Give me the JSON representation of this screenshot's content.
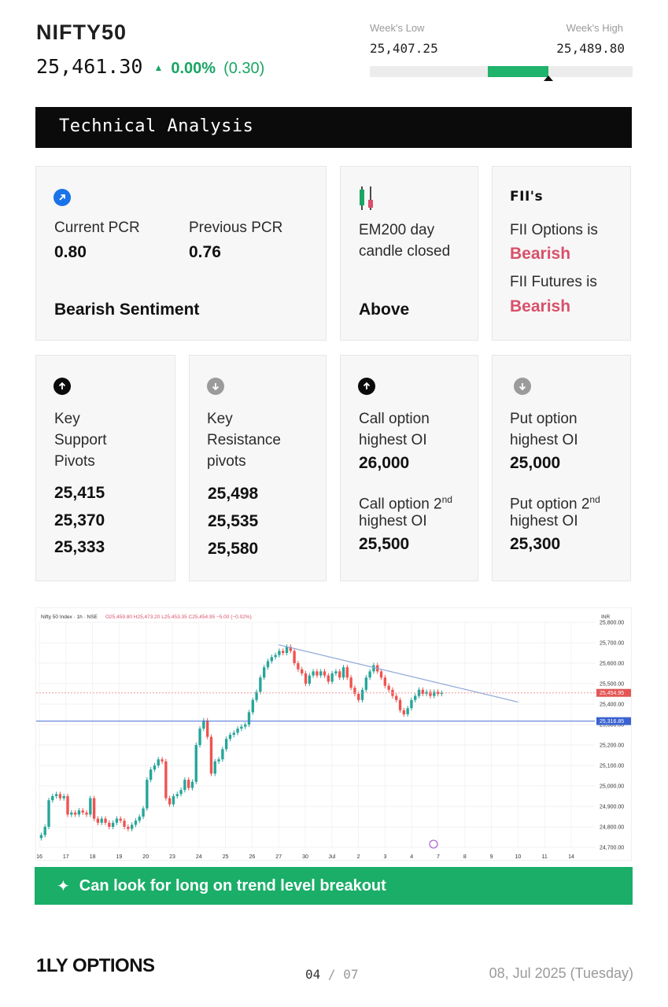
{
  "header": {
    "title": "NIFTY50",
    "price": "25,461.30",
    "change_pct": "0.00%",
    "change_abs": "(0.30)",
    "week_low_label": "Week's Low",
    "week_low": "25,407.25",
    "week_high_label": "Week's High",
    "week_high": "25,489.80",
    "range_fill_start": 0.45,
    "range_fill_end": 0.68,
    "range_marker": 0.68
  },
  "banner": {
    "title": "Technical Analysis"
  },
  "pcr": {
    "current_label": "Current PCR",
    "current_value": "0.80",
    "previous_label": "Previous PCR",
    "previous_value": "0.76",
    "sentiment": "Bearish Sentiment"
  },
  "ema": {
    "label_line1": "EM200 day",
    "label_line2": "candle closed",
    "value": "Above"
  },
  "fii": {
    "logo": "FII's",
    "options_label": "FII Options is",
    "options_value": "Bearish",
    "futures_label": "FII Futures is",
    "futures_value": "Bearish"
  },
  "support": {
    "l1": "Key",
    "l2": "Support",
    "l3": "Pivots",
    "values": [
      "25,415",
      "25,370",
      "25,333"
    ]
  },
  "resistance": {
    "l1": "Key",
    "l2": "Resistance",
    "l3": "pivots",
    "values": [
      "25,498",
      "25,535",
      "25,580"
    ]
  },
  "call": {
    "l1": "Call option",
    "l2": "highest OI",
    "value1": "26,000",
    "second_l1": "Call option 2",
    "second_sup": "nd",
    "second_l2": "highest OI",
    "value2": "25,500"
  },
  "put": {
    "l1": "Put option",
    "l2": "highest OI",
    "value1": "25,000",
    "second_l1": "Put option 2",
    "second_sup": "nd",
    "second_l2": "highest OI",
    "value2": "25,300"
  },
  "cta": {
    "text": "Can look for long on trend level breakout"
  },
  "footer": {
    "logo": "1LY OPTIONS",
    "page": "04",
    "sep": "/",
    "total": "07",
    "date": "08, Jul 2025 (Tuesday)"
  },
  "colors": {
    "up": "#1aa564",
    "down": "#d9506a",
    "accent": "#1aae68",
    "banner": "#0b0b0b"
  },
  "chart_data": {
    "type": "candlestick",
    "header": "Nifty 50 Index · 1h · NSE",
    "ohlc_text": "O25,459.80  H25,473.20  L25,453.35  C25,454.95  −5.00 (−0.02%)",
    "currency": "INR",
    "ylim": [
      24700,
      25800
    ],
    "y_ticks": [
      24700,
      24800,
      24900,
      25000,
      25100,
      25200,
      25300,
      25400,
      25500,
      25600,
      25700,
      25800
    ],
    "y_tick_labels": [
      "24,700.00",
      "24,800.00",
      "24,900.00",
      "25,000.00",
      "25,100.00",
      "25,200.00",
      "25,300.00",
      "25,400.00",
      "25,500.00",
      "25,600.00",
      "25,700.00",
      "25,800.00"
    ],
    "x_labels": [
      "16",
      "17",
      "18",
      "19",
      "20",
      "23",
      "24",
      "25",
      "26",
      "27",
      "30",
      "Jul",
      "2",
      "3",
      "4",
      "7",
      "8",
      "9",
      "10",
      "11",
      "14"
    ],
    "last_price_label": "25,454.95",
    "last_price": 25454.95,
    "support_line_label": "25,316.85",
    "support_line": 25316.85,
    "trendline": {
      "from": {
        "x": "27",
        "y": 25690
      },
      "to": {
        "x": "10",
        "y": 25410
      }
    },
    "closes": [
      24760,
      24800,
      24930,
      24950,
      24960,
      24940,
      24950,
      24860,
      24870,
      24860,
      24880,
      24870,
      24860,
      24940,
      24840,
      24820,
      24840,
      24820,
      24800,
      24820,
      24840,
      24830,
      24800,
      24790,
      24810,
      24830,
      24850,
      24890,
      25030,
      25080,
      25100,
      25130,
      25120,
      24940,
      24910,
      24950,
      24960,
      24980,
      25030,
      24990,
      25020,
      25200,
      25280,
      25320,
      25240,
      25060,
      25120,
      25130,
      25180,
      25230,
      25250,
      25260,
      25280,
      25290,
      25300,
      25360,
      25420,
      25460,
      25530,
      25580,
      25610,
      25630,
      25640,
      25660,
      25650,
      25680,
      25660,
      25600,
      25570,
      25550,
      25500,
      25540,
      25560,
      25540,
      25560,
      25540,
      25510,
      25550,
      25560,
      25530,
      25580,
      25530,
      25480,
      25450,
      25420,
      25470,
      25530,
      25560,
      25590,
      25560,
      25530,
      25490,
      25470,
      25440,
      25420,
      25370,
      25350,
      25380,
      25420,
      25440,
      25470,
      25450,
      25460,
      25440,
      25460,
      25450,
      25455
    ]
  }
}
